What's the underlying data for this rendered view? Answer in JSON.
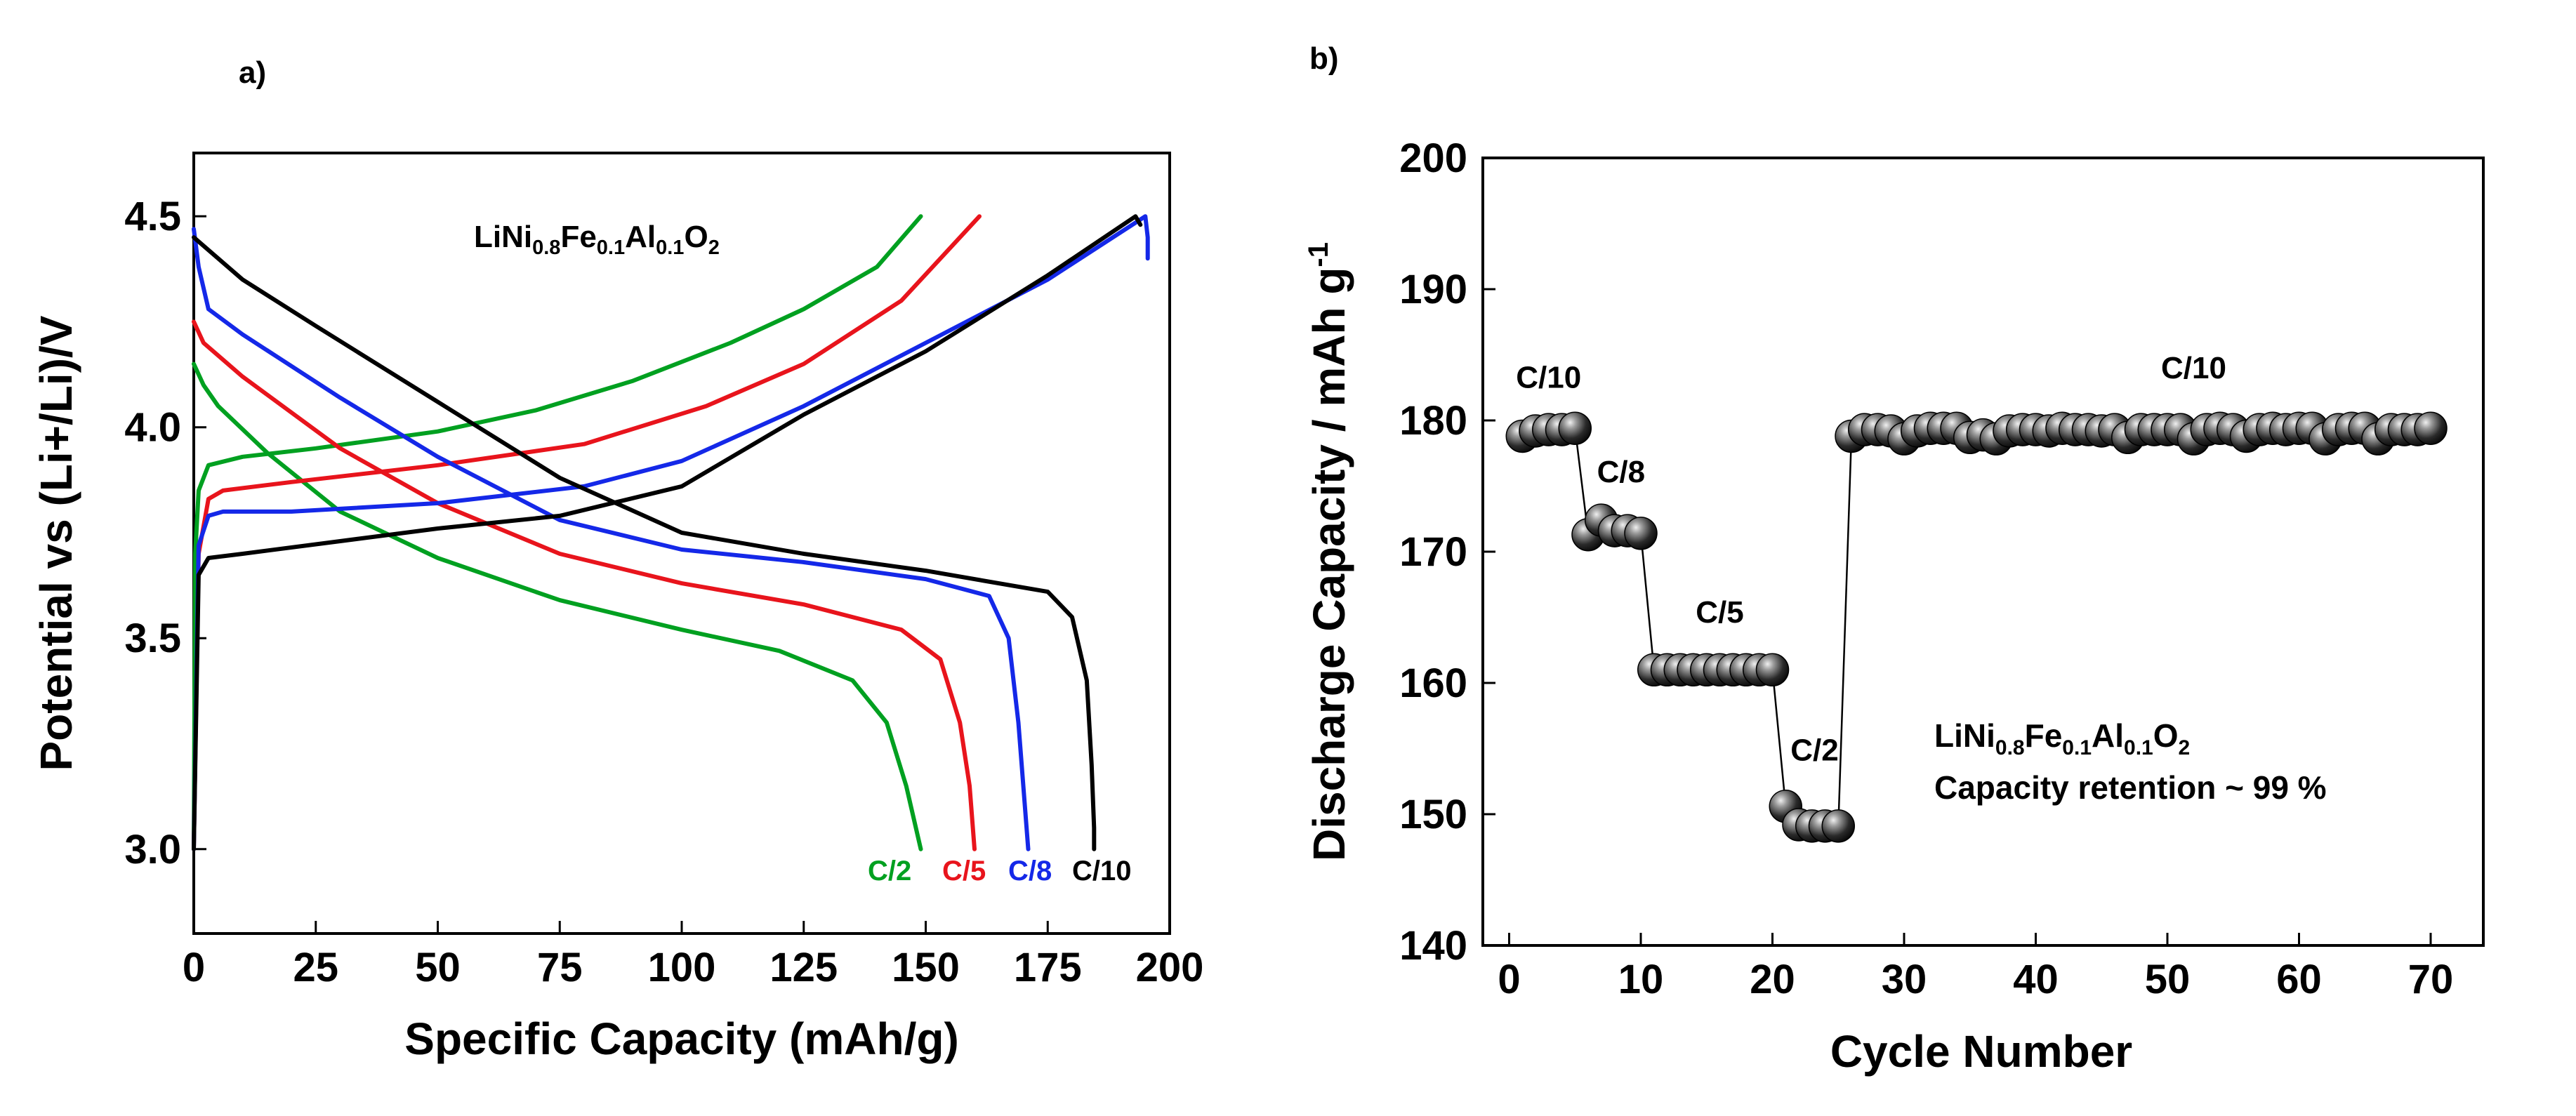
{
  "colors": {
    "green": "#00a020",
    "red": "#e8141c",
    "blue": "#1428e8",
    "black": "#000000"
  },
  "chart_data": [
    {
      "panel": "a)",
      "type": "line",
      "title": "",
      "xlabel": "Specific Capacity (mAh/g)",
      "ylabel": "Potential vs (Li+/Li)/V",
      "xlim": [
        0,
        200
      ],
      "ylim": [
        2.8,
        4.65
      ],
      "xticks": [
        0,
        25,
        50,
        75,
        100,
        125,
        150,
        175,
        200
      ],
      "xtick_labels": [
        "0",
        "25",
        "50",
        "75",
        "100",
        "125",
        "150",
        "175",
        "200"
      ],
      "yticks": [
        3.0,
        3.5,
        4.0,
        4.5
      ],
      "ytick_labels": [
        "3.0",
        "3.5",
        "4.0",
        "4.5"
      ],
      "annotation": {
        "base": "LiNi",
        "sub1": "0.8",
        "mid1": "Fe",
        "sub2": "0.1",
        "mid2": "Al",
        "sub3": "0.1",
        "mid3": "O",
        "sub4": "2"
      },
      "series": [
        {
          "name": "C/2",
          "color": "green",
          "label": "C/2",
          "charge": [
            [
              0,
              3.0
            ],
            [
              0.3,
              3.7
            ],
            [
              1,
              3.85
            ],
            [
              3,
              3.91
            ],
            [
              10,
              3.93
            ],
            [
              25,
              3.95
            ],
            [
              50,
              3.99
            ],
            [
              70,
              4.04
            ],
            [
              90,
              4.11
            ],
            [
              110,
              4.2
            ],
            [
              125,
              4.28
            ],
            [
              140,
              4.38
            ],
            [
              149,
              4.5
            ]
          ],
          "discharge": [
            [
              0,
              4.15
            ],
            [
              2,
              4.1
            ],
            [
              5,
              4.05
            ],
            [
              15,
              3.94
            ],
            [
              30,
              3.8
            ],
            [
              50,
              3.69
            ],
            [
              75,
              3.59
            ],
            [
              100,
              3.52
            ],
            [
              120,
              3.47
            ],
            [
              135,
              3.4
            ],
            [
              142,
              3.3
            ],
            [
              146,
              3.15
            ],
            [
              149,
              3.0
            ]
          ]
        },
        {
          "name": "C/5",
          "color": "red",
          "label": "C/5",
          "charge": [
            [
              0,
              3.0
            ],
            [
              1,
              3.7
            ],
            [
              3,
              3.83
            ],
            [
              6,
              3.85
            ],
            [
              20,
              3.87
            ],
            [
              50,
              3.91
            ],
            [
              80,
              3.96
            ],
            [
              105,
              4.05
            ],
            [
              125,
              4.15
            ],
            [
              145,
              4.3
            ],
            [
              161,
              4.5
            ]
          ],
          "discharge": [
            [
              0,
              4.25
            ],
            [
              2,
              4.2
            ],
            [
              10,
              4.12
            ],
            [
              30,
              3.95
            ],
            [
              50,
              3.82
            ],
            [
              75,
              3.7
            ],
            [
              100,
              3.63
            ],
            [
              125,
              3.58
            ],
            [
              145,
              3.52
            ],
            [
              153,
              3.45
            ],
            [
              157,
              3.3
            ],
            [
              159,
              3.15
            ],
            [
              160,
              3.0
            ]
          ]
        },
        {
          "name": "C/8",
          "color": "blue",
          "label": "C/8",
          "charge": [
            [
              0,
              3.0
            ],
            [
              1,
              3.72
            ],
            [
              3,
              3.79
            ],
            [
              6,
              3.8
            ],
            [
              20,
              3.8
            ],
            [
              50,
              3.82
            ],
            [
              80,
              3.86
            ],
            [
              100,
              3.92
            ],
            [
              125,
              4.05
            ],
            [
              150,
              4.2
            ],
            [
              175,
              4.35
            ],
            [
              195,
              4.5
            ],
            [
              195.5,
              4.45
            ],
            [
              195.5,
              4.4
            ]
          ],
          "discharge": [
            [
              0,
              4.47
            ],
            [
              1,
              4.38
            ],
            [
              3,
              4.28
            ],
            [
              10,
              4.22
            ],
            [
              30,
              4.07
            ],
            [
              50,
              3.93
            ],
            [
              75,
              3.78
            ],
            [
              100,
              3.71
            ],
            [
              125,
              3.68
            ],
            [
              150,
              3.64
            ],
            [
              163,
              3.6
            ],
            [
              167,
              3.5
            ],
            [
              169,
              3.3
            ],
            [
              170,
              3.15
            ],
            [
              171,
              3.0
            ]
          ]
        },
        {
          "name": "C/10",
          "color": "black",
          "label": "C/10",
          "charge": [
            [
              0,
              3.0
            ],
            [
              1,
              3.65
            ],
            [
              3,
              3.69
            ],
            [
              10,
              3.7
            ],
            [
              30,
              3.73
            ],
            [
              50,
              3.76
            ],
            [
              75,
              3.79
            ],
            [
              100,
              3.86
            ],
            [
              125,
              4.03
            ],
            [
              150,
              4.18
            ],
            [
              175,
              4.36
            ],
            [
              193,
              4.5
            ],
            [
              194,
              4.48
            ]
          ],
          "discharge": [
            [
              0,
              4.45
            ],
            [
              10,
              4.35
            ],
            [
              25,
              4.24
            ],
            [
              50,
              4.06
            ],
            [
              75,
              3.88
            ],
            [
              100,
              3.75
            ],
            [
              125,
              3.7
            ],
            [
              150,
              3.66
            ],
            [
              175,
              3.61
            ],
            [
              180,
              3.55
            ],
            [
              183,
              3.4
            ],
            [
              184,
              3.2
            ],
            [
              184.5,
              3.05
            ],
            [
              184.5,
              3.0
            ]
          ]
        }
      ]
    },
    {
      "panel": "b)",
      "type": "scatter",
      "title": "",
      "xlabel": "Cycle Number",
      "ylabel_main": "Discharge Capacity / mAh g",
      "ylabel_sup": "-1",
      "xlim": [
        -2,
        74
      ],
      "ylim": [
        140,
        200
      ],
      "xticks": [
        0,
        10,
        20,
        30,
        40,
        50,
        60,
        70
      ],
      "xtick_labels": [
        "0",
        "10",
        "20",
        "30",
        "40",
        "50",
        "60",
        "70"
      ],
      "yticks": [
        140,
        150,
        160,
        170,
        180,
        190,
        200
      ],
      "ytick_labels": [
        "140",
        "150",
        "160",
        "170",
        "180",
        "190",
        "200"
      ],
      "rate_labels": [
        {
          "text": "C/10",
          "x": 3,
          "y": 182.5
        },
        {
          "text": "C/8",
          "x": 8.5,
          "y": 175.3
        },
        {
          "text": "C/5",
          "x": 16,
          "y": 164.6
        },
        {
          "text": "C/2",
          "x": 23.2,
          "y": 154.1
        },
        {
          "text": "C/10",
          "x": 52,
          "y": 183.2
        }
      ],
      "annotation": {
        "base": "LiNi",
        "sub1": "0.8",
        "mid1": "Fe",
        "sub2": "0.1",
        "mid2": "Al",
        "sub3": "0.1",
        "mid3": "O",
        "sub4": "2",
        "retention": "Capacity retention ~ 99 %"
      },
      "x": [
        1,
        2,
        3,
        4,
        5,
        6,
        7,
        8,
        9,
        10,
        11,
        12,
        13,
        14,
        15,
        16,
        17,
        18,
        19,
        20,
        21,
        22,
        23,
        24,
        25,
        26,
        27,
        28,
        29,
        30,
        31,
        32,
        33,
        34,
        35,
        36,
        37,
        38,
        39,
        40,
        41,
        42,
        43,
        44,
        45,
        46,
        47,
        48,
        49,
        50,
        51,
        52,
        53,
        54,
        55,
        56,
        57,
        58,
        59,
        60,
        61,
        62,
        63,
        64,
        65,
        66,
        67,
        68,
        69,
        70
      ],
      "y": [
        178.8,
        179.2,
        179.3,
        179.3,
        179.4,
        171.3,
        172.4,
        171.6,
        171.6,
        171.4,
        161.0,
        161.0,
        161.0,
        161.0,
        161.0,
        161.0,
        161.0,
        161.0,
        161.0,
        161.0,
        150.6,
        149.2,
        149.1,
        149.1,
        149.1,
        178.8,
        179.3,
        179.3,
        179.2,
        178.6,
        179.2,
        179.4,
        179.4,
        179.4,
        178.7,
        178.9,
        178.6,
        179.2,
        179.3,
        179.3,
        179.2,
        179.4,
        179.3,
        179.3,
        179.2,
        179.3,
        178.7,
        179.3,
        179.3,
        179.3,
        179.3,
        178.6,
        179.3,
        179.4,
        179.3,
        178.8,
        179.3,
        179.4,
        179.3,
        179.4,
        179.4,
        178.6,
        179.3,
        179.4,
        179.4,
        178.6,
        179.3,
        179.3,
        179.3,
        179.4
      ]
    }
  ]
}
